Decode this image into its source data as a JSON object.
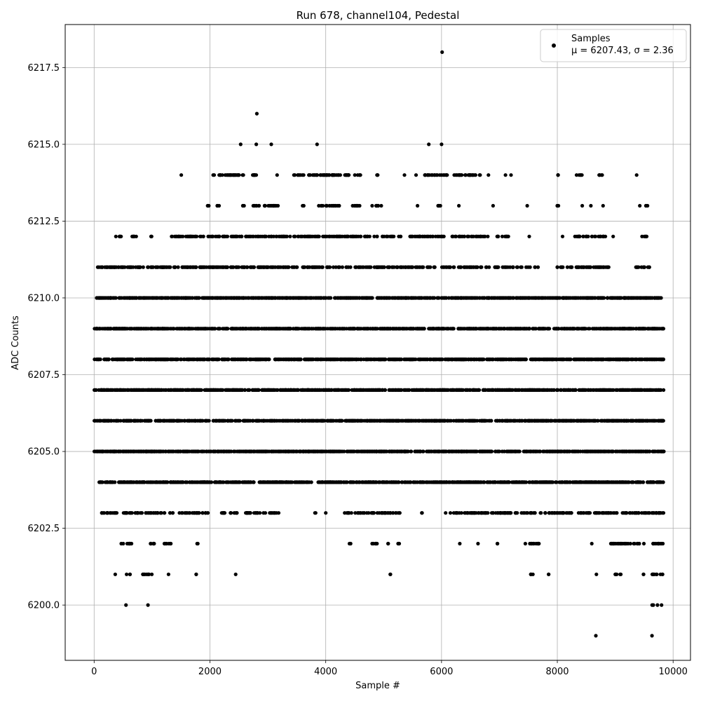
{
  "chart_data": {
    "type": "scatter",
    "title": "Run 678, channel104, Pedestal",
    "xlabel": "Sample #",
    "ylabel": "ADC Counts",
    "xlim": [
      -500,
      10300
    ],
    "ylim": [
      6198.2,
      6218.9
    ],
    "x_ticks": [
      0,
      2000,
      4000,
      6000,
      8000,
      10000
    ],
    "x_tick_labels": [
      "0",
      "2000",
      "4000",
      "6000",
      "8000",
      "10000"
    ],
    "y_ticks": [
      6200.0,
      6202.5,
      6205.0,
      6207.5,
      6210.0,
      6212.5,
      6215.0,
      6217.5
    ],
    "y_tick_labels": [
      "6200.0",
      "6202.5",
      "6205.0",
      "6207.5",
      "6210.0",
      "6212.5",
      "6215.0",
      "6217.5"
    ],
    "grid": true,
    "legend_position": "top-right",
    "marker_color": "#000000",
    "series": [
      {
        "name": "Samples",
        "legend_stats": "μ = 6207.43, σ = 2.36",
        "n_samples": 9840,
        "mean": 6207.43,
        "std": 2.36,
        "level_ranges": [
          {
            "value": 6199,
            "x_ranges": [
              [
                8660,
                8670
              ],
              [
                9630,
                9640
              ]
            ]
          },
          {
            "value": 6200,
            "x_ranges": [
              [
                540,
                560
              ],
              [
                920,
                940
              ],
              [
                9620,
                9660
              ],
              [
                9720,
                9740
              ],
              [
                9790,
                9810
              ]
            ]
          },
          {
            "value": 6201,
            "x_ranges": [
              [
                350,
                380
              ],
              [
                560,
                620
              ],
              [
                820,
                1000
              ],
              [
                1270,
                1300
              ],
              [
                1740,
                1780
              ],
              [
                2430,
                2460
              ],
              [
                5100,
                5140
              ],
              [
                7530,
                7600
              ],
              [
                7840,
                7880
              ],
              [
                8660,
                8690
              ],
              [
                8990,
                9110
              ],
              [
                9460,
                9500
              ],
              [
                9630,
                9820
              ]
            ]
          },
          {
            "value": 6202,
            "x_ranges": [
              [
                460,
                650
              ],
              [
                950,
                1090
              ],
              [
                1200,
                1340
              ],
              [
                1760,
                1800
              ],
              [
                4400,
                4460
              ],
              [
                4780,
                4890
              ],
              [
                5040,
                5080
              ],
              [
                5220,
                5270
              ],
              [
                6300,
                6330
              ],
              [
                6620,
                6640
              ],
              [
                6960,
                7000
              ],
              [
                7440,
                7700
              ],
              [
                8580,
                8610
              ],
              [
                8900,
                9500
              ],
              [
                9600,
                9830
              ]
            ]
          },
          {
            "value": 6203,
            "x_ranges": [
              [
                130,
                460
              ],
              [
                480,
                1380
              ],
              [
                1440,
                1980
              ],
              [
                2200,
                2500
              ],
              [
                2600,
                3220
              ],
              [
                3800,
                3840
              ],
              [
                3990,
                4010
              ],
              [
                4320,
                4460
              ],
              [
                4500,
                5300
              ],
              [
                5640,
                5680
              ],
              [
                6050,
                8250
              ],
              [
                8300,
                9840
              ]
            ]
          },
          {
            "value": 6204,
            "x_ranges": [
              [
                80,
                2760
              ],
              [
                2850,
                3800
              ],
              [
                3860,
                9840
              ]
            ]
          },
          {
            "value": 6205,
            "x_ranges": [
              [
                0,
                9840
              ]
            ]
          },
          {
            "value": 6206,
            "x_ranges": [
              [
                0,
                9840
              ]
            ]
          },
          {
            "value": 6207,
            "x_ranges": [
              [
                0,
                9840
              ]
            ]
          },
          {
            "value": 6208,
            "x_ranges": [
              [
                0,
                9840
              ]
            ]
          },
          {
            "value": 6209,
            "x_ranges": [
              [
                0,
                9840
              ]
            ]
          },
          {
            "value": 6210,
            "x_ranges": [
              [
                0,
                9840
              ]
            ]
          },
          {
            "value": 6211,
            "x_ranges": [
              [
                60,
                7700
              ],
              [
                7950,
                8900
              ],
              [
                9350,
                9600
              ]
            ]
          },
          {
            "value": 6212,
            "x_ranges": [
              [
                350,
                470
              ],
              [
                620,
                780
              ],
              [
                970,
                1020
              ],
              [
                1320,
                6800
              ],
              [
                6900,
                7160
              ],
              [
                7500,
                7530
              ],
              [
                8080,
                8100
              ],
              [
                8250,
                8850
              ],
              [
                8950,
                8980
              ],
              [
                9450,
                9560
              ]
            ]
          },
          {
            "value": 6213,
            "x_ranges": [
              [
                1940,
                2000
              ],
              [
                2110,
                2160
              ],
              [
                2550,
                2600
              ],
              [
                2740,
                3210
              ],
              [
                3580,
                3640
              ],
              [
                3870,
                4250
              ],
              [
                4450,
                4600
              ],
              [
                4800,
                4970
              ],
              [
                5570,
                5600
              ],
              [
                5900,
                6000
              ],
              [
                6290,
                6310
              ],
              [
                6880,
                6900
              ],
              [
                7470,
                7490
              ],
              [
                7990,
                8050
              ],
              [
                8420,
                8440
              ],
              [
                8570,
                8590
              ],
              [
                8780,
                8800
              ],
              [
                9410,
                9440
              ],
              [
                9520,
                9570
              ]
            ]
          },
          {
            "value": 6214,
            "x_ranges": [
              [
                1500,
                1510
              ],
              [
                2050,
                2600
              ],
              [
                2700,
                2850
              ],
              [
                3150,
                3170
              ],
              [
                3400,
                4400
              ],
              [
                4500,
                4600
              ],
              [
                4850,
                4900
              ],
              [
                5350,
                5370
              ],
              [
                5550,
                5570
              ],
              [
                5700,
                6100
              ],
              [
                6200,
                6700
              ],
              [
                6800,
                6820
              ],
              [
                7090,
                7120
              ],
              [
                7190,
                7210
              ],
              [
                8000,
                8050
              ],
              [
                8330,
                8430
              ],
              [
                8700,
                8800
              ],
              [
                9360,
                9380
              ]
            ]
          },
          {
            "value": 6215,
            "x_ranges": [
              [
                2520,
                2540
              ],
              [
                2790,
                2810
              ],
              [
                3050,
                3070
              ],
              [
                3840,
                3860
              ],
              [
                5770,
                5790
              ],
              [
                5990,
                6010
              ]
            ]
          },
          {
            "value": 6216,
            "x_ranges": [
              [
                2800,
                2820
              ]
            ]
          },
          {
            "value": 6218,
            "x_ranges": [
              [
                6000,
                6020
              ]
            ]
          }
        ]
      }
    ]
  }
}
